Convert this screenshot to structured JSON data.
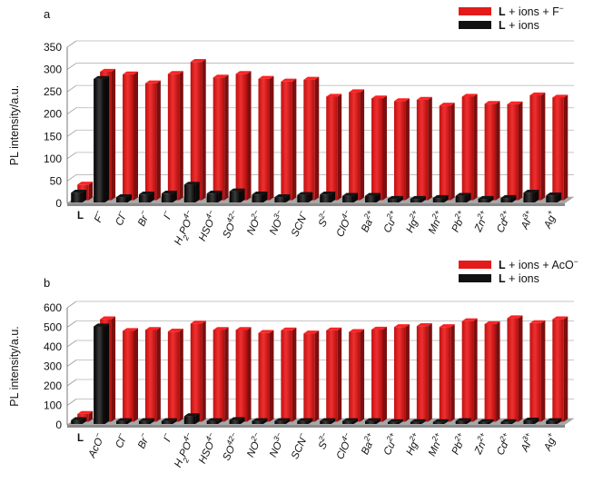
{
  "chart_data": [
    {
      "panel": "a",
      "type": "bar",
      "ylabel": "PL intensity/a.u.",
      "ylim": [
        0,
        350
      ],
      "yticks": [
        0,
        50,
        100,
        150,
        200,
        250,
        300,
        350
      ],
      "grid": true,
      "legend_position": "top-right",
      "categories": [
        "L",
        "F-",
        "Cl-",
        "Br-",
        "I-",
        "H2PO4-",
        "HSO4-",
        "SO42-",
        "NO2-",
        "NO3-",
        "SCN-",
        "S2-",
        "ClO4-",
        "Ba2+",
        "Cu2+",
        "Hg2+",
        "Mn2+",
        "Pb2+",
        "Zn2+",
        "Cd2+",
        "Al3+",
        "Ag+"
      ],
      "series": [
        {
          "name": "L + ions + F-",
          "color": "#e31b1b",
          "values": [
            35,
            288,
            282,
            262,
            283,
            310,
            275,
            283,
            272,
            266,
            270,
            232,
            242,
            228,
            222,
            225,
            212,
            232,
            216,
            215,
            235,
            230
          ]
        },
        {
          "name": "L + ions",
          "color": "#111111",
          "values": [
            22,
            277,
            12,
            18,
            20,
            40,
            20,
            25,
            18,
            12,
            17,
            18,
            15,
            15,
            8,
            8,
            10,
            15,
            8,
            10,
            22,
            16
          ]
        }
      ]
    },
    {
      "panel": "b",
      "type": "bar",
      "ylabel": "PL intensity/a.u.",
      "ylim": [
        0,
        600
      ],
      "yticks": [
        0,
        100,
        200,
        300,
        400,
        500,
        600
      ],
      "grid": true,
      "legend_position": "top-right",
      "categories": [
        "L",
        "AcO-",
        "Cl-",
        "Br-",
        "I-",
        "H2PO4-",
        "HSO4-",
        "SO42-",
        "NO2-",
        "NO3-",
        "SCN-",
        "S2-",
        "ClO4-",
        "Ba2+",
        "Cu2+",
        "Hg2+",
        "Mn2+",
        "Pb2+",
        "Zn2+",
        "Cd2+",
        "Al3+",
        "Ag+"
      ],
      "series": [
        {
          "name": "L + ions + AcO-",
          "color": "#e31b1b",
          "values": [
            40,
            525,
            465,
            470,
            462,
            503,
            470,
            470,
            455,
            468,
            452,
            468,
            460,
            472,
            485,
            490,
            485,
            515,
            500,
            530,
            505,
            525
          ]
        },
        {
          "name": "L + ions",
          "color": "#111111",
          "values": [
            20,
            500,
            15,
            15,
            15,
            40,
            15,
            20,
            15,
            15,
            15,
            15,
            15,
            15,
            10,
            10,
            10,
            15,
            10,
            10,
            18,
            15
          ]
        }
      ]
    }
  ]
}
